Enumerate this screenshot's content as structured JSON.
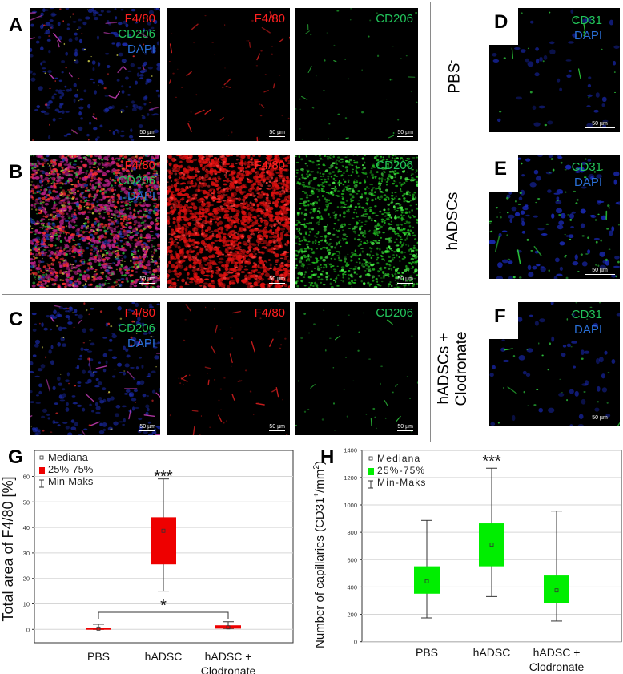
{
  "figure": {
    "panels_left": [
      {
        "letter": "A",
        "merge_labels": [
          "F4/80",
          "CD206",
          "DAPI"
        ],
        "red_label": "F4/80",
        "green_label": "CD206",
        "scale": "50 µm",
        "density": "low"
      },
      {
        "letter": "B",
        "merge_labels": [
          "F4/80",
          "CD206",
          "DAPI"
        ],
        "red_label": "F4/80",
        "green_label": "CD206",
        "scale": "50 µm",
        "density": "high"
      },
      {
        "letter": "C",
        "merge_labels": [
          "F4/80",
          "CD206",
          "DAPI"
        ],
        "red_label": "F4/80",
        "green_label": "CD206",
        "scale": "50 µm",
        "density": "low"
      }
    ],
    "panels_right": [
      {
        "letter": "D",
        "labels": [
          "CD31",
          "DAPI"
        ],
        "group": "PBS",
        "group_sup": "-",
        "scale": "50 µm"
      },
      {
        "letter": "E",
        "labels": [
          "CD31",
          "DAPI"
        ],
        "group": "hADSCs",
        "group_sup": "",
        "scale": "50 µm"
      },
      {
        "letter": "F",
        "labels": [
          "CD31",
          "DAPI"
        ],
        "group": "hADSCs +",
        "group_line2": "Clodronate",
        "scale": "50 µm"
      }
    ],
    "colors": {
      "red_channel": "#ff2020",
      "green_channel": "#22c35a",
      "blue_channel": "#2a6fd6",
      "box_red": "#ee0000",
      "box_green": "#00ee00"
    }
  },
  "chart_data": [
    {
      "panel": "G",
      "type": "box",
      "title": "",
      "ylabel": "Total area of F4/80 [%]",
      "xlabel": "",
      "categories": [
        "PBS",
        "hADSC",
        "hADSC + Clodronate"
      ],
      "category_lines": [
        [
          "PBS"
        ],
        [
          "hADSC"
        ],
        [
          "hADSC +",
          "Clodronate"
        ]
      ],
      "ylim": [
        -5,
        64
      ],
      "yticks": [
        0,
        10,
        20,
        30,
        40,
        50,
        60
      ],
      "grid": true,
      "legend": {
        "position": "upper-left",
        "entries": [
          "Mediana",
          "25%-75%",
          "Min-Maks"
        ]
      },
      "series": [
        {
          "name": "PBS",
          "median": 0.3,
          "q1": 0.0,
          "q3": 0.5,
          "min": 0.0,
          "max": 2.0
        },
        {
          "name": "hADSC",
          "median": 38.7,
          "q1": 25.5,
          "q3": 44.0,
          "min": 15.0,
          "max": 59.0
        },
        {
          "name": "hADSC + Clodronate",
          "median": 0.8,
          "q1": 0.3,
          "q3": 1.6,
          "min": 0.3,
          "max": 3.0
        }
      ],
      "annotations": [
        {
          "text": "***",
          "over": "hADSC"
        },
        {
          "text": "*",
          "bracket": [
            "PBS",
            "hADSC + Clodronate"
          ]
        }
      ],
      "box_color": "#ee0000"
    },
    {
      "panel": "H",
      "type": "box",
      "title": "",
      "ylabel": "Number of capillaries (CD31+/mm2)",
      "ylabel_parts": {
        "pre": "Number of capillaries (CD31",
        "sup1": "+",
        "mid": "/mm",
        "sup2": "2",
        "post": ")"
      },
      "xlabel": "",
      "categories": [
        "PBS",
        "hADSC",
        "hADSC + Clodronate"
      ],
      "category_lines": [
        [
          "PBS"
        ],
        [
          "hADSC"
        ],
        [
          "hADSC  +",
          "Clodronate"
        ]
      ],
      "ylim": [
        0,
        1400
      ],
      "yticks": [
        0,
        200,
        400,
        600,
        800,
        1000,
        1200,
        1400
      ],
      "grid": true,
      "legend": {
        "position": "upper-left",
        "entries": [
          "Mediana",
          "25%-75%",
          "Min-Maks"
        ]
      },
      "series": [
        {
          "name": "PBS",
          "median": 442,
          "q1": 351,
          "q3": 551,
          "min": 174,
          "max": 887
        },
        {
          "name": "hADSC",
          "median": 709,
          "q1": 551,
          "q3": 865,
          "min": 330,
          "max": 1268
        },
        {
          "name": "hADSC + Clodronate",
          "median": 375,
          "q1": 285,
          "q3": 484,
          "min": 151,
          "max": 955
        }
      ],
      "annotations": [
        {
          "text": "***",
          "over": "hADSC"
        }
      ],
      "box_color": "#00ee00"
    }
  ]
}
